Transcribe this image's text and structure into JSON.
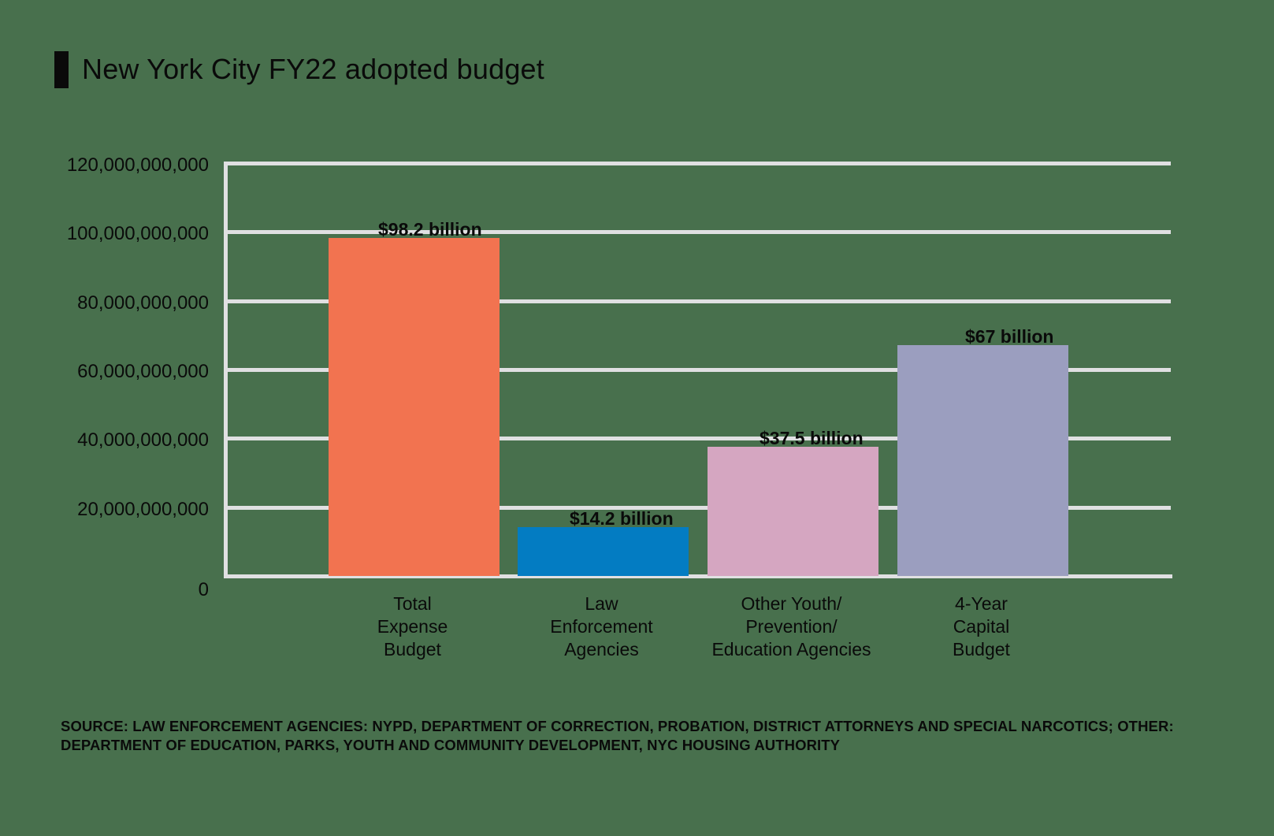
{
  "title": "New York City FY22 adopted budget",
  "y_ticks": [
    "120,000,000,000",
    "100,000,000,000",
    "80,000,000,000",
    "60,000,000,000",
    "40,000,000,000",
    "20,000,000,000",
    "0"
  ],
  "bars": [
    {
      "category": "Total Expense Budget",
      "lines": [
        "Total",
        "Expense",
        "Budget"
      ],
      "value": 98200000000,
      "label": "$98.2 billion",
      "color": "#f27350"
    },
    {
      "category": "Law Enforcement Agencies",
      "lines": [
        "Law",
        "Enforcement",
        "Agencies"
      ],
      "value": 14200000000,
      "label": "$14.2 billion",
      "color": "#037cc2"
    },
    {
      "category": "Other Youth/Prevention/Education Agencies",
      "lines": [
        "Other Youth/",
        "Prevention/",
        "Education Agencies"
      ],
      "value": 37500000000,
      "label": "$37.5 billion",
      "color": "#d5a6c1"
    },
    {
      "category": "4-Year Capital Budget",
      "lines": [
        "4-Year",
        "Capital",
        "Budget"
      ],
      "value": 67000000000,
      "label": "$67 billion",
      "color": "#9b9ebf"
    }
  ],
  "source": "SOURCE: LAW ENFORCEMENT AGENCIES: NYPD, DEPARTMENT OF CORRECTION, PROBATION, DISTRICT ATTORNEYS AND SPECIAL NARCOTICS; OTHER: DEPARTMENT OF EDUCATION, PARKS, YOUTH AND COMMUNITY DEVELOPMENT, NYC HOUSING AUTHORITY",
  "colors": {
    "background": "#48704d",
    "grid": "#e0e0e2",
    "text": "#0a0a0a"
  },
  "chart_data": {
    "type": "bar",
    "title": "New York City FY22 adopted budget",
    "categories": [
      "Total Expense Budget",
      "Law Enforcement Agencies",
      "Other Youth/Prevention/Education Agencies",
      "4-Year Capital Budget"
    ],
    "values": [
      98200000000,
      14200000000,
      37500000000,
      67000000000
    ],
    "data_labels": [
      "$98.2 billion",
      "$14.2 billion",
      "$37.5 billion",
      "$67 billion"
    ],
    "xlabel": "",
    "ylabel": "",
    "ylim": [
      0,
      120000000000
    ],
    "yticks": [
      0,
      20000000000,
      40000000000,
      60000000000,
      80000000000,
      100000000000,
      120000000000
    ],
    "grid": true,
    "legend": "none",
    "annotations": [
      "SOURCE: LAW ENFORCEMENT AGENCIES: NYPD, DEPARTMENT OF CORRECTION, PROBATION, DISTRICT ATTORNEYS AND SPECIAL NARCOTICS; OTHER: DEPARTMENT OF EDUCATION, PARKS, YOUTH AND COMMUNITY DEVELOPMENT, NYC HOUSING AUTHORITY"
    ]
  }
}
